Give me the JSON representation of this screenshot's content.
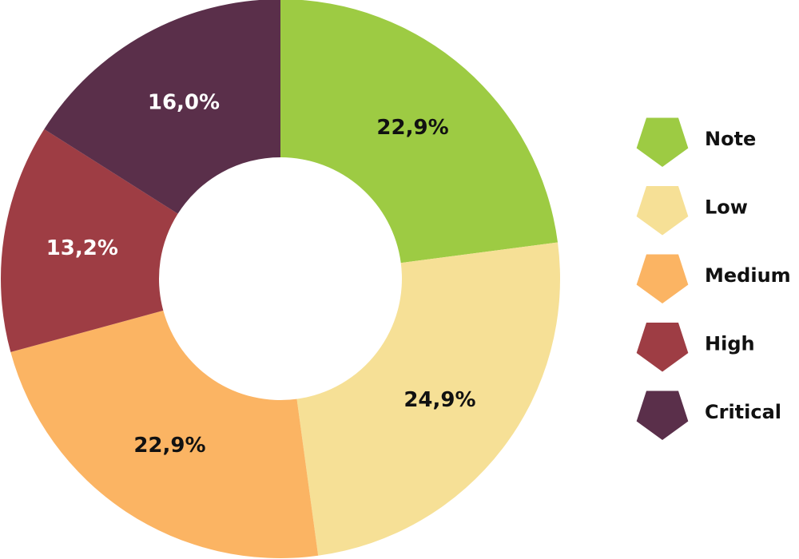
{
  "chart_data": {
    "type": "pie",
    "variant": "donut",
    "categories": [
      "Note",
      "Low",
      "Medium",
      "High",
      "Critical"
    ],
    "values": [
      22.9,
      24.9,
      22.9,
      13.2,
      16.0
    ],
    "value_labels": [
      "22,9%",
      "24,9%",
      "22,9%",
      "13,2%",
      "16,0%"
    ],
    "colors": [
      "#9dcb43",
      "#f6e096",
      "#fbb463",
      "#9e3d44",
      "#5a2f4a"
    ],
    "label_colors": [
      "#111111",
      "#111111",
      "#111111",
      "#ffffff",
      "#ffffff"
    ],
    "legend_position": "right",
    "legend_marker": "pentagon",
    "start": "top",
    "direction": "clockwise"
  }
}
